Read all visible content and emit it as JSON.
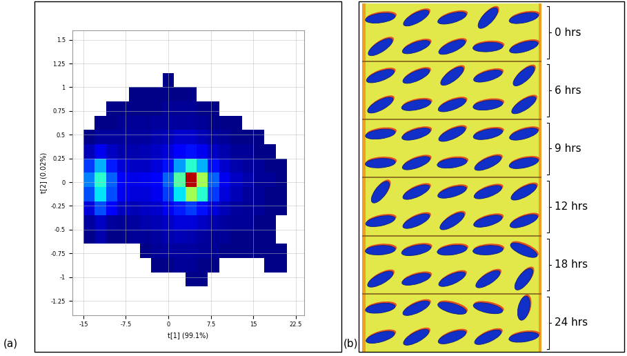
{
  "chart_data": {
    "type": "heatmap",
    "annotations": [
      "(a)"
    ],
    "x_label": "t[1] (99.1%)",
    "y_label": "t[2] (0.02%)",
    "xlim": [
      -17,
      24
    ],
    "ylim": [
      -1.4,
      1.6
    ],
    "xticks": [
      -15,
      -7.5,
      0,
      7.5,
      15,
      22.5
    ],
    "yticks": [
      -1.25,
      -1,
      -0.75,
      -0.5,
      -0.25,
      0,
      0.25,
      0.5,
      0.75,
      1,
      1.25,
      1.5
    ],
    "grid": true,
    "x_edges": [
      -17,
      -15,
      -13,
      -11,
      -9,
      -7,
      -5,
      -3,
      -1,
      1,
      3,
      5,
      7,
      9,
      11,
      13,
      15,
      17,
      19,
      21,
      23
    ],
    "y_edges": [
      -1.4,
      -1.25,
      -1.1,
      -0.95,
      -0.8,
      -0.65,
      -0.5,
      -0.35,
      -0.2,
      -0.05,
      0.1,
      0.25,
      0.4,
      0.55,
      0.7,
      0.85,
      1.0,
      1.15,
      1.3,
      1.45,
      1.6
    ],
    "color_range": [
      0,
      100
    ],
    "cells": [
      [
        0,
        0,
        0,
        0,
        0,
        0,
        0,
        0,
        0,
        0,
        0,
        0,
        0,
        0,
        0,
        0,
        0,
        0,
        0,
        0
      ],
      [
        0,
        0,
        0,
        0,
        0,
        0,
        0,
        0,
        0,
        0,
        0,
        0,
        0,
        0,
        0,
        0,
        0,
        0,
        0,
        0
      ],
      [
        0,
        0,
        0,
        0,
        0,
        0,
        0,
        0,
        0,
        0,
        1,
        1,
        0,
        0,
        0,
        0,
        0,
        0,
        0,
        0
      ],
      [
        0,
        0,
        0,
        0,
        0,
        0,
        0,
        1,
        1,
        2,
        2,
        1,
        1,
        0,
        0,
        0,
        0,
        1,
        1,
        0
      ],
      [
        0,
        0,
        0,
        0,
        0,
        0,
        1,
        2,
        3,
        3,
        3,
        2,
        2,
        1,
        1,
        1,
        1,
        1,
        1,
        0
      ],
      [
        0,
        1,
        4,
        1,
        1,
        2,
        2,
        3,
        4,
        5,
        4,
        3,
        2,
        2,
        1,
        1,
        1,
        1,
        0,
        0
      ],
      [
        0,
        3,
        6,
        3,
        2,
        3,
        4,
        5,
        6,
        8,
        8,
        6,
        4,
        3,
        2,
        2,
        1,
        1,
        0,
        0
      ],
      [
        0,
        8,
        20,
        12,
        6,
        5,
        6,
        7,
        10,
        15,
        18,
        14,
        8,
        5,
        3,
        2,
        2,
        1,
        1,
        0
      ],
      [
        0,
        20,
        35,
        20,
        10,
        8,
        8,
        10,
        18,
        35,
        55,
        40,
        18,
        8,
        5,
        3,
        2,
        1,
        1,
        0
      ],
      [
        0,
        25,
        40,
        22,
        12,
        9,
        10,
        12,
        22,
        45,
        95,
        55,
        22,
        10,
        6,
        4,
        2,
        2,
        1,
        0
      ],
      [
        0,
        18,
        30,
        15,
        8,
        6,
        6,
        8,
        14,
        28,
        40,
        30,
        14,
        7,
        4,
        3,
        2,
        1,
        1,
        0
      ],
      [
        0,
        5,
        10,
        6,
        4,
        4,
        5,
        6,
        8,
        12,
        14,
        10,
        6,
        4,
        2,
        2,
        1,
        1,
        0,
        0
      ],
      [
        0,
        1,
        3,
        3,
        3,
        3,
        3,
        4,
        5,
        7,
        7,
        5,
        3,
        2,
        1,
        1,
        1,
        0,
        0,
        0
      ],
      [
        0,
        0,
        1,
        1,
        2,
        2,
        2,
        3,
        3,
        3,
        3,
        2,
        1,
        1,
        1,
        0,
        0,
        0,
        0,
        0
      ],
      [
        0,
        0,
        0,
        1,
        1,
        1,
        1,
        1,
        2,
        2,
        2,
        1,
        1,
        0,
        0,
        0,
        0,
        0,
        0,
        0
      ],
      [
        0,
        0,
        0,
        0,
        0,
        1,
        1,
        1,
        1,
        1,
        1,
        0,
        0,
        0,
        0,
        0,
        0,
        0,
        0,
        0
      ],
      [
        0,
        0,
        0,
        0,
        0,
        0,
        0,
        0,
        1,
        0,
        0,
        0,
        0,
        0,
        0,
        0,
        0,
        0,
        0,
        0
      ],
      [
        0,
        0,
        0,
        0,
        0,
        0,
        0,
        0,
        0,
        0,
        0,
        0,
        0,
        0,
        0,
        0,
        0,
        0,
        0,
        0
      ],
      [
        0,
        0,
        0,
        0,
        0,
        0,
        0,
        0,
        0,
        0,
        0,
        0,
        0,
        0,
        0,
        0,
        0,
        0,
        0,
        0
      ],
      [
        0,
        0,
        0,
        0,
        0,
        0,
        0,
        0,
        0,
        0,
        0,
        0,
        0,
        0,
        0,
        0,
        0,
        0,
        0,
        0
      ]
    ]
  },
  "image_panel": {
    "label": "(b)",
    "groups": [
      "0 hrs",
      "6 hrs",
      "9 hrs",
      "12 hrs",
      "18 hrs",
      "24 hrs"
    ]
  }
}
